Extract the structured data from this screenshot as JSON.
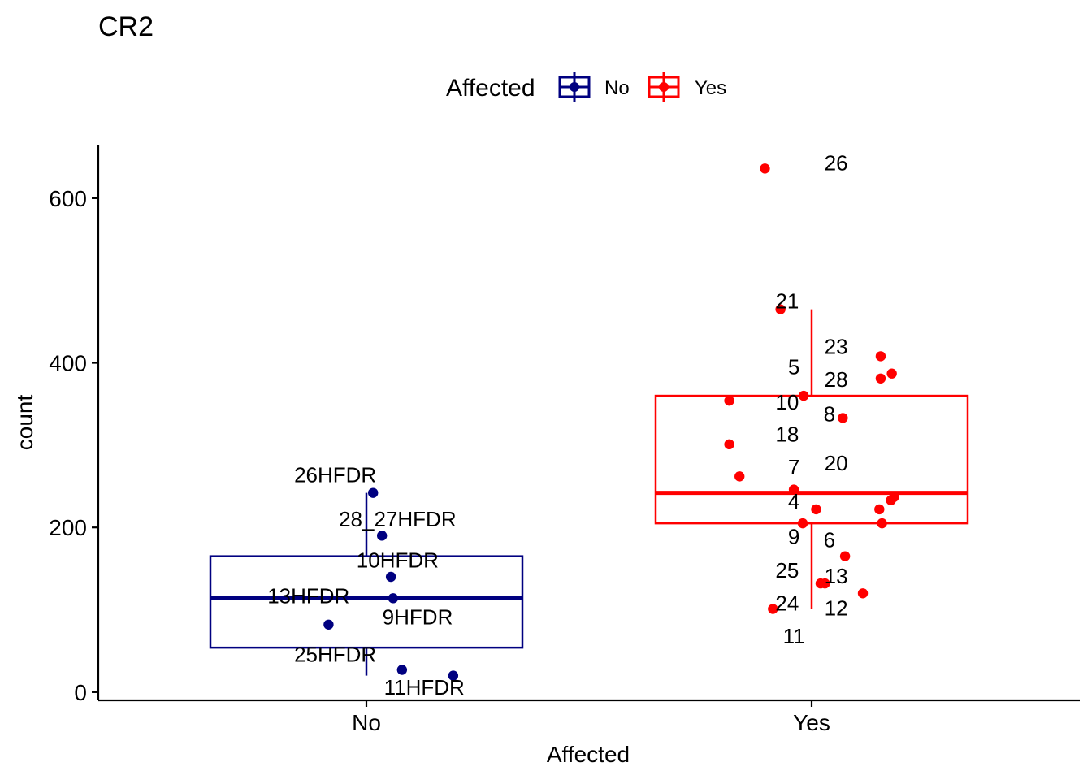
{
  "chart_data": {
    "type": "boxplot-jitter",
    "title": "CR2",
    "xlabel": "Affected",
    "ylabel": "count",
    "ylim": [
      -10,
      665
    ],
    "yticks": [
      0,
      200,
      400,
      600
    ],
    "categories": [
      "No",
      "Yes"
    ],
    "legend": {
      "title": "Affected",
      "position": "top",
      "entries": [
        "No",
        "Yes"
      ]
    },
    "colors": {
      "No": "#000080",
      "Yes": "#ff0000"
    },
    "series": [
      {
        "name": "No",
        "box": {
          "q1": 54,
          "median": 114,
          "q3": 165,
          "whisker_low": 20,
          "whisker_high": 242
        },
        "points": [
          {
            "jitter": 0.015,
            "y": 242
          },
          {
            "jitter": 0.035,
            "y": 190
          },
          {
            "jitter": 0.055,
            "y": 140
          },
          {
            "jitter": 0.06,
            "y": 114
          },
          {
            "jitter": -0.085,
            "y": 82
          },
          {
            "jitter": 0.08,
            "y": 27
          },
          {
            "jitter": 0.195,
            "y": 20
          }
        ],
        "labels": [
          {
            "text": "26HFDR",
            "jitter": -0.07,
            "y": 264
          },
          {
            "text": "28_27HFDR",
            "jitter": 0.07,
            "y": 210
          },
          {
            "text": "10HFDR",
            "jitter": 0.07,
            "y": 160
          },
          {
            "text": "13HFDR",
            "jitter": -0.13,
            "y": 117
          },
          {
            "text": "9HFDR",
            "jitter": 0.115,
            "y": 91
          },
          {
            "text": "25HFDR",
            "jitter": -0.07,
            "y": 46
          },
          {
            "text": "11HFDR",
            "jitter": 0.13,
            "y": 6
          }
        ]
      },
      {
        "name": "Yes",
        "box": {
          "q1": 205,
          "median": 242,
          "q3": 360,
          "whisker_low": 101,
          "whisker_high": 465
        },
        "points": [
          {
            "jitter": -0.105,
            "y": 636
          },
          {
            "jitter": -0.07,
            "y": 465
          },
          {
            "jitter": 0.155,
            "y": 408
          },
          {
            "jitter": 0.18,
            "y": 387
          },
          {
            "jitter": 0.155,
            "y": 381
          },
          {
            "jitter": -0.018,
            "y": 360
          },
          {
            "jitter": -0.185,
            "y": 354
          },
          {
            "jitter": 0.07,
            "y": 333
          },
          {
            "jitter": -0.185,
            "y": 301
          },
          {
            "jitter": -0.162,
            "y": 262
          },
          {
            "jitter": -0.04,
            "y": 246
          },
          {
            "jitter": 0.185,
            "y": 237
          },
          {
            "jitter": 0.178,
            "y": 233
          },
          {
            "jitter": 0.01,
            "y": 222
          },
          {
            "jitter": 0.152,
            "y": 222
          },
          {
            "jitter": -0.02,
            "y": 205
          },
          {
            "jitter": 0.158,
            "y": 205
          },
          {
            "jitter": 0.075,
            "y": 165
          },
          {
            "jitter": 0.02,
            "y": 132
          },
          {
            "jitter": 0.03,
            "y": 132
          },
          {
            "jitter": 0.115,
            "y": 120
          },
          {
            "jitter": -0.087,
            "y": 101
          }
        ],
        "labels": [
          {
            "text": "26",
            "jitter": 0.055,
            "y": 643
          },
          {
            "text": "21",
            "jitter": -0.055,
            "y": 475
          },
          {
            "text": "23",
            "jitter": 0.055,
            "y": 420
          },
          {
            "text": "5",
            "jitter": -0.04,
            "y": 395
          },
          {
            "text": "28",
            "jitter": 0.055,
            "y": 380
          },
          {
            "text": "10",
            "jitter": -0.055,
            "y": 352
          },
          {
            "text": "8",
            "jitter": 0.04,
            "y": 338
          },
          {
            "text": "18",
            "jitter": -0.055,
            "y": 313
          },
          {
            "text": "20",
            "jitter": 0.055,
            "y": 278
          },
          {
            "text": "7",
            "jitter": -0.04,
            "y": 273
          },
          {
            "text": "4",
            "jitter": -0.04,
            "y": 232
          },
          {
            "text": "9",
            "jitter": -0.04,
            "y": 189
          },
          {
            "text": "6",
            "jitter": 0.04,
            "y": 185
          },
          {
            "text": "25",
            "jitter": -0.055,
            "y": 148
          },
          {
            "text": "13",
            "jitter": 0.055,
            "y": 141
          },
          {
            "text": "24",
            "jitter": -0.055,
            "y": 108
          },
          {
            "text": "12",
            "jitter": 0.055,
            "y": 102
          },
          {
            "text": "11",
            "jitter": -0.04,
            "y": 68
          }
        ]
      }
    ]
  }
}
